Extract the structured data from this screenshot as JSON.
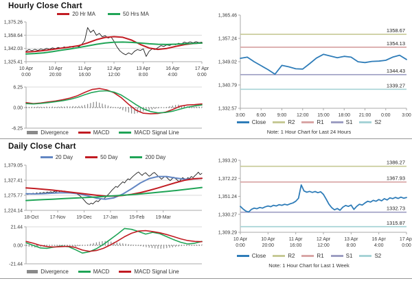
{
  "panels": {
    "hourly": {
      "title": "Hourly Close Chart",
      "legend": [
        {
          "label": "20 Hr MA",
          "color": "#c11b22",
          "type": "line"
        },
        {
          "label": "50 Hrs MA",
          "color": "#1fa456",
          "type": "line"
        }
      ],
      "macd_legend": [
        {
          "label": "Divergence",
          "color": "#8a8a8a",
          "type": "bars"
        },
        {
          "label": "MACD",
          "color": "#c11b22",
          "type": "line"
        },
        {
          "label": "MACD Signal Line",
          "color": "#1fa456",
          "type": "line"
        }
      ]
    },
    "sr24": {
      "legend": [
        {
          "label": "Close",
          "color": "#2e7cb8",
          "type": "line"
        },
        {
          "label": "R2",
          "color": "#c6c995",
          "type": "line"
        },
        {
          "label": "R1",
          "color": "#d8a5a5",
          "type": "line"
        },
        {
          "label": "S1",
          "color": "#9c9dc2",
          "type": "line"
        },
        {
          "label": "S2",
          "color": "#a6d3d6",
          "type": "line"
        }
      ],
      "note": "Note: 1 Hour Chart for Last 24 Hours"
    },
    "daily": {
      "title": "Daily Close Chart",
      "legend": [
        {
          "label": "20 Day",
          "color": "#6286c3",
          "type": "line"
        },
        {
          "label": "50 Day",
          "color": "#c11b22",
          "type": "line"
        },
        {
          "label": "200 Day",
          "color": "#1fa456",
          "type": "line"
        }
      ],
      "macd_legend": [
        {
          "label": "Divergence",
          "color": "#8a8a8a",
          "type": "bars"
        },
        {
          "label": "MACD",
          "color": "#1fa456",
          "type": "line"
        },
        {
          "label": "MACD Signal Line",
          "color": "#c11b22",
          "type": "line"
        }
      ]
    },
    "week": {
      "legend": [
        {
          "label": "Close",
          "color": "#2e7cb8",
          "type": "line"
        },
        {
          "label": "R2",
          "color": "#c6c995",
          "type": "line"
        },
        {
          "label": "R1",
          "color": "#d8a5a5",
          "type": "line"
        },
        {
          "label": "S1",
          "color": "#9c9dc2",
          "type": "line"
        },
        {
          "label": "S2",
          "color": "#a6d3d6",
          "type": "line"
        }
      ],
      "note": "Note: 1 Hour Chart for Last 1 Week"
    }
  },
  "chart_data": [
    {
      "id": "hourly-close",
      "type": "line",
      "title": "Hourly Close Chart",
      "ylim": [
        1325.41,
        1375.26
      ],
      "yticks": [
        "1,375.26",
        "1,358.64",
        "1,342.03",
        "1,325.41"
      ],
      "gridticks": [
        1,
        2
      ],
      "xticks": [
        [
          "10 Apr",
          "0:00"
        ],
        [
          "10 Apr",
          "20:00"
        ],
        [
          "11 Apr",
          "16:00"
        ],
        [
          "12 Apr",
          "12:00"
        ],
        [
          "13 Apr",
          "8:00"
        ],
        [
          "16 Apr",
          "4:00"
        ],
        [
          "17 Apr",
          "0:00"
        ]
      ],
      "series": [
        {
          "name": "Close",
          "color": "#1b1b1b",
          "width": 0.9,
          "values": [
            1338.5,
            1340.8,
            1339.2,
            1341.0,
            1339.5,
            1341.3,
            1340.3,
            1342.2,
            1341.0,
            1342.8,
            1341.8,
            1343.3,
            1342.2,
            1344.0,
            1343.0,
            1344.6,
            1343.5,
            1345.2,
            1344.2,
            1347.0,
            1352.0,
            1368.2,
            1362.0,
            1365.0,
            1358.5,
            1361.0,
            1356.5,
            1358.0,
            1355.0,
            1356.5,
            1351.0,
            1344.0,
            1339.0,
            1336.0,
            1334.0,
            1336.5,
            1334.5,
            1338.5,
            1340.5,
            1339.5,
            1341.5,
            1332.0,
            1338.5,
            1341.5,
            1340.5,
            1343.0,
            1345.5,
            1344.5,
            1346.5,
            1345.8,
            1347.5,
            1346.5,
            1348.5,
            1347.5,
            1350.0,
            1348.8,
            1350.3,
            1349.0,
            1350.5,
            1349.3,
            1350.0
          ]
        },
        {
          "name": "20 Hr MA",
          "color": "#c11b22",
          "width": 2,
          "values": [
            1337.5,
            1338.2,
            1339.3,
            1340.8,
            1342.3,
            1343.8,
            1345.5,
            1349.0,
            1353.0,
            1355.8,
            1356.8,
            1356.0,
            1352.5,
            1347.0,
            1342.5,
            1340.8,
            1342.0,
            1344.5,
            1346.8,
            1348.2,
            1348.8
          ]
        },
        {
          "name": "50 Hrs MA",
          "color": "#1fa456",
          "width": 2,
          "values": [
            1335.0,
            1335.6,
            1336.5,
            1338.0,
            1339.8,
            1341.3,
            1343.2,
            1345.2,
            1347.2,
            1348.8,
            1349.8,
            1350.0,
            1349.6,
            1348.8,
            1347.8,
            1347.2,
            1347.0,
            1347.3,
            1347.8,
            1348.3,
            1348.8
          ]
        }
      ]
    },
    {
      "id": "hourly-macd",
      "type": "bar+line",
      "ylim": [
        -6.25,
        6.25
      ],
      "yticks": [
        "6.25",
        "0.00",
        "-6.25"
      ],
      "gridticks": [
        0
      ],
      "zeroline": true,
      "xticks": [],
      "bars": {
        "name": "Divergence",
        "color": "#8a8a8a",
        "values": [
          0.3,
          0.2,
          0.25,
          0.2,
          0.3,
          0.25,
          0.2,
          0.3,
          0.25,
          0.3,
          0.2,
          0.3,
          0.35,
          0.3,
          0.4,
          0.35,
          0.45,
          0.4,
          0.5,
          0.6,
          0.8,
          1.1,
          1.4,
          1.7,
          1.8,
          1.5,
          1.2,
          0.9,
          0.6,
          0.3,
          0.1,
          -0.1,
          -0.4,
          -0.8,
          -1.2,
          -1.5,
          -1.8,
          -1.9,
          -1.7,
          -1.5,
          -1.2,
          -1.0,
          -0.8,
          -0.6,
          -0.4,
          -0.2,
          -0.1,
          0.1,
          0.2,
          0.4,
          0.6,
          0.8,
          0.9,
          0.7,
          0.5,
          0.4,
          0.3,
          0.25,
          0.3,
          0.25,
          0.3
        ]
      },
      "series": [
        {
          "name": "MACD",
          "color": "#c11b22",
          "width": 1.6,
          "values": [
            1.5,
            1.2,
            1.4,
            1.7,
            2.0,
            2.4,
            2.9,
            3.6,
            4.6,
            5.5,
            5.8,
            5.4,
            4.5,
            3.0,
            1.0,
            -0.8,
            -1.7,
            -1.9,
            -1.8,
            -1.4,
            -0.6,
            0.4,
            0.8,
            0.9,
            1.1
          ]
        },
        {
          "name": "MACD Signal Line",
          "color": "#1fa456",
          "width": 1.6,
          "values": [
            1.2,
            1.1,
            1.25,
            1.5,
            1.8,
            2.1,
            2.5,
            3.1,
            3.9,
            4.6,
            5.0,
            5.1,
            4.7,
            3.8,
            2.4,
            0.9,
            -0.4,
            -1.2,
            -1.6,
            -1.5,
            -1.1,
            -0.5,
            0.1,
            0.5,
            0.8
          ]
        }
      ]
    },
    {
      "id": "sr-24h",
      "type": "line",
      "ylim": [
        1332.57,
        1365.46
      ],
      "yticks": [
        "1,365.46",
        "1,357.24",
        "1,349.02",
        "1,340.79",
        "1,332.57"
      ],
      "gridticks": [],
      "xticks": [
        "3:00",
        "6:00",
        "9:00",
        "12:00",
        "15:00",
        "18:00",
        "21:00",
        "0:00",
        "3:00"
      ],
      "hlines": [
        {
          "name": "R2",
          "label": "1358.67",
          "value": 1358.67,
          "color": "#c6c995"
        },
        {
          "name": "R1",
          "label": "1354.13",
          "value": 1354.13,
          "color": "#d8a5a5"
        },
        {
          "name": "S1",
          "label": "1344.43",
          "value": 1344.43,
          "color": "#9c9dc2"
        },
        {
          "name": "S2",
          "label": "1339.27",
          "value": 1339.27,
          "color": "#a6d3d6"
        }
      ],
      "series": [
        {
          "name": "Close",
          "color": "#2e7cb8",
          "width": 1.8,
          "values": [
            1350.2,
            1350.6,
            1349.0,
            1347.6,
            1346.2,
            1344.6,
            1347.7,
            1347.2,
            1346.5,
            1346.4,
            1348.3,
            1350.3,
            1351.6,
            1351.0,
            1350.4,
            1350.9,
            1350.6,
            1349.0,
            1348.7,
            1349.1,
            1349.2,
            1349.5,
            1350.6,
            1351.3,
            1349.8
          ]
        }
      ],
      "note": "Note: 1 Hour Chart for Last 24 Hours"
    },
    {
      "id": "daily-close",
      "type": "line",
      "title": "Daily Close Chart",
      "ylim": [
        1224.14,
        1379.05
      ],
      "yticks": [
        "1,379.05",
        "1,327.41",
        "1,275.77",
        "1,224.14"
      ],
      "gridticks": [
        1,
        2
      ],
      "xticks": [
        "18-Oct",
        "17-Nov",
        "19-Dec",
        "17-Jan",
        "15-Feb",
        "19-Mar"
      ],
      "xtickpos": [
        0.03,
        0.18,
        0.33,
        0.48,
        0.63,
        0.78
      ],
      "series": [
        {
          "name": "Close",
          "color": "#1b1b1b",
          "width": 0.9,
          "values": [
            1281,
            1278.5,
            1282,
            1279,
            1283,
            1280,
            1284,
            1281,
            1285,
            1282,
            1286,
            1283,
            1287,
            1284.5,
            1288,
            1285,
            1289.5,
            1286.5,
            1291,
            1288,
            1292,
            1288.5,
            1290.5,
            1286,
            1288,
            1284,
            1286,
            1282,
            1284.5,
            1280,
            1277,
            1272,
            1266,
            1259,
            1252,
            1247,
            1244.5,
            1249,
            1246,
            1252,
            1257,
            1254,
            1260,
            1265,
            1262.5,
            1268,
            1274,
            1280,
            1287,
            1294,
            1300,
            1306,
            1303,
            1310,
            1316,
            1322,
            1318,
            1326,
            1332,
            1329,
            1336,
            1342,
            1347,
            1352,
            1355.5,
            1349,
            1344,
            1350,
            1353,
            1347,
            1341,
            1345,
            1351,
            1354,
            1348,
            1342,
            1337,
            1331,
            1336,
            1341,
            1337,
            1331,
            1326,
            1332,
            1338,
            1333,
            1328,
            1322,
            1329,
            1336,
            1333,
            1329,
            1336,
            1333,
            1340,
            1336,
            1343,
            1348,
            1355,
            1347,
            1351
          ]
        },
        {
          "name": "20 Day",
          "color": "#6286c3",
          "width": 2,
          "values": [
            1281,
            1280.5,
            1281.5,
            1283,
            1284.5,
            1284,
            1281,
            1274,
            1266,
            1262.5,
            1267,
            1280,
            1298,
            1318,
            1333,
            1340,
            1340,
            1335,
            1331,
            1331.5,
            1334
          ]
        },
        {
          "name": "50 Day",
          "color": "#c11b22",
          "width": 2,
          "values": [
            1301,
            1299,
            1296.5,
            1293.5,
            1290,
            1286.5,
            1283,
            1279.5,
            1276,
            1273.5,
            1273,
            1275,
            1279,
            1285,
            1292.5,
            1301,
            1310,
            1319,
            1327,
            1332,
            1334
          ]
        },
        {
          "name": "200 Day",
          "color": "#1fa456",
          "width": 2,
          "values": [
            1258,
            1259.5,
            1261,
            1262.5,
            1264,
            1265.5,
            1267,
            1268.5,
            1270,
            1272,
            1274,
            1276,
            1278,
            1280.5,
            1283,
            1286,
            1289,
            1292,
            1295.5,
            1299,
            1302.5
          ]
        }
      ]
    },
    {
      "id": "daily-macd",
      "type": "bar+line",
      "ylim": [
        -21.44,
        21.44
      ],
      "yticks": [
        "21.44",
        "0.00",
        "-21.44"
      ],
      "gridticks": [
        0
      ],
      "zeroline": true,
      "xticks": [],
      "bars": {
        "name": "Divergence",
        "color": "#8a8a8a",
        "values": [
          -1.0,
          -1.5,
          -2.0,
          -2.5,
          -2.2,
          -1.8,
          -1.4,
          -1.0,
          -0.6,
          -0.4,
          -0.3,
          -0.5,
          -1.0,
          -1.6,
          -2.2,
          -2.5,
          -2.2,
          -1.6,
          -0.8,
          -0.2,
          0.4,
          1.0,
          1.8,
          2.6,
          3.4,
          4.2,
          4.8,
          5.0,
          4.7,
          4.3,
          3.8,
          3.3,
          2.8,
          2.3,
          1.8,
          1.2,
          0.6,
          0.2,
          -0.3,
          -0.9,
          -1.5,
          -2.1,
          -2.7,
          -3.2,
          -3.6,
          -3.9,
          -4.0,
          -3.7,
          -3.3,
          -2.8,
          -2.3,
          -1.8,
          -1.3,
          -0.9,
          -0.5,
          -0.2,
          0.2,
          0.4,
          0.6,
          0.8,
          1.0
        ]
      },
      "series": [
        {
          "name": "MACD",
          "color": "#1fa456",
          "width": 1.6,
          "values": [
            3.0,
            0.0,
            -3.0,
            -3.5,
            -2.0,
            -1.0,
            -1.5,
            -5.0,
            -9.0,
            -7.5,
            -4.0,
            1.0,
            7.0,
            13.0,
            19.5,
            18.5,
            16.0,
            13.0,
            15.0,
            13.5,
            10.0,
            6.5,
            3.5,
            1.5,
            2.5,
            4.5
          ]
        },
        {
          "name": "MACD Signal Line",
          "color": "#c11b22",
          "width": 1.6,
          "values": [
            4.5,
            2.5,
            0.0,
            -1.5,
            -2.0,
            -1.5,
            -1.2,
            -2.5,
            -5.5,
            -7.0,
            -6.0,
            -3.5,
            0.5,
            5.0,
            10.0,
            14.0,
            16.5,
            17.0,
            16.0,
            14.5,
            12.5,
            10.0,
            7.5,
            5.5,
            4.5,
            4.2
          ]
        }
      ]
    },
    {
      "id": "sr-week",
      "type": "line",
      "ylim": [
        1309.29,
        1393.2
      ],
      "yticks": [
        "1,393.20",
        "1,372.22",
        "1,351.24",
        "1,330.27",
        "1,309.29"
      ],
      "gridticks": [],
      "xticks": [
        [
          "10 Apr",
          "0:00"
        ],
        [
          "10 Apr",
          "20:00"
        ],
        [
          "11 Apr",
          "16:00"
        ],
        [
          "12 Apr",
          "12:00"
        ],
        [
          "13 Apr",
          "8:00"
        ],
        [
          "16 Apr",
          "4:00"
        ],
        [
          "17 Apr",
          "0:00"
        ]
      ],
      "hlines": [
        {
          "name": "R2",
          "label": "1386.27",
          "value": 1386.27,
          "color": "#c6c995"
        },
        {
          "name": "R1",
          "label": "1367.93",
          "value": 1367.93,
          "color": "#d8a5a5"
        },
        {
          "name": "S1",
          "label": "1332.73",
          "value": 1332.73,
          "color": "#9c9dc2"
        },
        {
          "name": "S2",
          "label": "1315.87",
          "value": 1315.87,
          "color": "#a6d3d6"
        }
      ],
      "series": [
        {
          "name": "Close",
          "color": "#2e7cb8",
          "width": 1.8,
          "values": [
            1339.5,
            1336.5,
            1334.0,
            1333.0,
            1336.0,
            1337.5,
            1336.8,
            1338.2,
            1337.5,
            1339.0,
            1340.0,
            1339.2,
            1340.8,
            1340.0,
            1341.5,
            1340.8,
            1342.0,
            1341.2,
            1342.5,
            1343.5,
            1345.5,
            1349.0,
            1364.5,
            1357.5,
            1356.0,
            1357.0,
            1355.8,
            1356.8,
            1355.5,
            1356.5,
            1353.5,
            1348.0,
            1342.0,
            1338.0,
            1335.5,
            1337.0,
            1335.0,
            1338.5,
            1340.5,
            1339.5,
            1341.0,
            1336.0,
            1339.5,
            1342.0,
            1341.0,
            1343.5,
            1345.5,
            1344.5,
            1346.5,
            1345.5,
            1347.5,
            1346.0,
            1348.5,
            1347.0,
            1349.5,
            1348.5,
            1350.0,
            1348.8,
            1350.3,
            1349.0,
            1349.8
          ]
        }
      ],
      "note": "Note: 1 Hour Chart for Last 1 Week"
    }
  ]
}
